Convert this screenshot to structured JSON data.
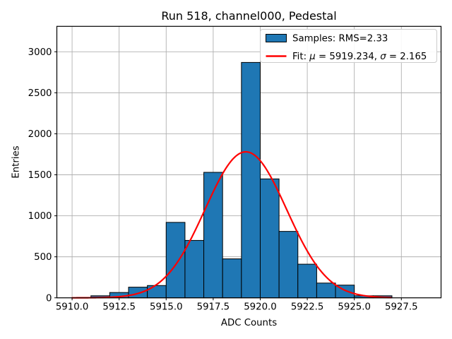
{
  "chart_data": {
    "type": "bar",
    "subtype": "histogram-with-gaussian-fit",
    "title": "Run 518, channel000, Pedestal",
    "xlabel": "ADC Counts",
    "ylabel": "Entries",
    "xlim": [
      5909.19,
      5929.61
    ],
    "ylim": [
      0,
      3310
    ],
    "grid": true,
    "grid_color": "#b0b0b0",
    "bar_fill_color": "#1f77b4",
    "bar_edge_color": "#000000",
    "fit_line_color": "#ff0000",
    "xticks": {
      "values": [
        5910.0,
        5912.5,
        5915.0,
        5917.5,
        5920.0,
        5922.5,
        5925.0,
        5927.5
      ],
      "labels": [
        "5910.0",
        "5912.5",
        "5915.0",
        "5917.5",
        "5920.0",
        "5922.5",
        "5925.0",
        "5927.5"
      ]
    },
    "yticks": {
      "values": [
        0,
        500,
        1000,
        1500,
        2000,
        2500,
        3000
      ],
      "labels": [
        "0",
        "500",
        "1000",
        "1500",
        "2000",
        "2500",
        "3000"
      ]
    },
    "histogram": {
      "bin_edges": [
        5911,
        5912,
        5913,
        5914,
        5915,
        5916,
        5917,
        5918,
        5919,
        5920,
        5921,
        5922,
        5923,
        5924,
        5925,
        5926,
        5927
      ],
      "counts": [
        25,
        65,
        130,
        150,
        920,
        700,
        1530,
        475,
        2870,
        1450,
        810,
        410,
        180,
        155,
        25,
        25
      ]
    },
    "fit": {
      "mu": 5919.234,
      "sigma": 2.165,
      "peak": 1780,
      "x_start": 5910.0,
      "x_end": 5926.97
    },
    "legend": {
      "position": "upper-right",
      "entries": [
        {
          "swatch": "patch",
          "color": "#1f77b4",
          "segments": [
            {
              "t": "Samples: RMS=2.33",
              "i": false
            }
          ]
        },
        {
          "swatch": "line",
          "color": "#ff0000",
          "segments": [
            {
              "t": "Fit: ",
              "i": false
            },
            {
              "t": "μ",
              "i": true
            },
            {
              "t": " = 5919.234, ",
              "i": false
            },
            {
              "t": "σ",
              "i": true
            },
            {
              "t": " = 2.165",
              "i": false
            }
          ]
        }
      ]
    }
  }
}
